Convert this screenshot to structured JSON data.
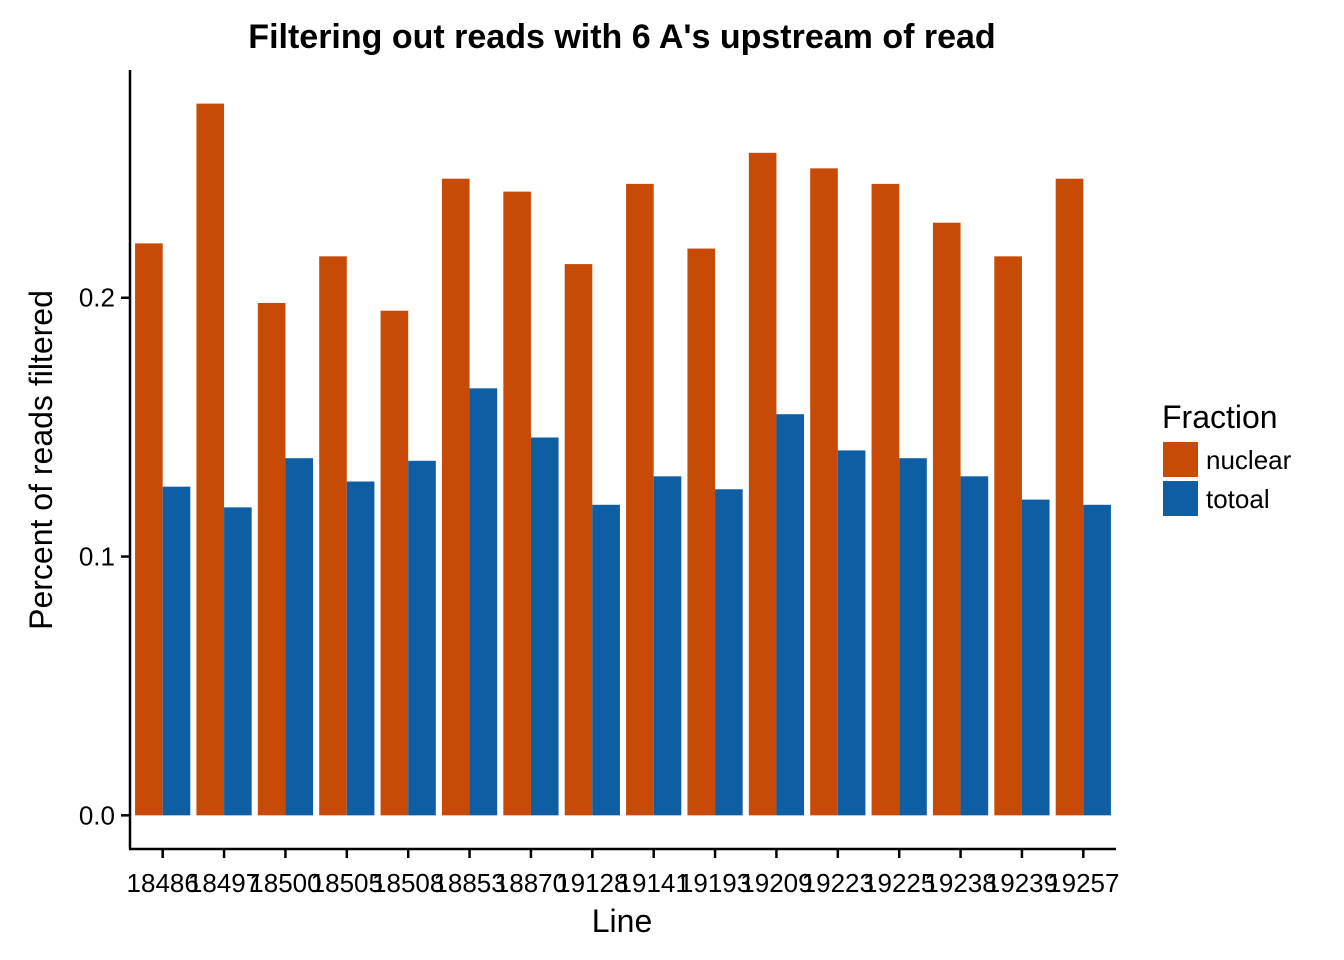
{
  "chart_data": {
    "type": "bar",
    "title": "Filtering out reads with 6 A's upstream of read",
    "xlabel": "Line",
    "ylabel": "Percent of reads filtered",
    "categories": [
      "18486",
      "18497",
      "18500",
      "18505",
      "18508",
      "18853",
      "18870",
      "19128",
      "19141",
      "19193",
      "19209",
      "19223",
      "19225",
      "19238",
      "19239",
      "19257"
    ],
    "series": [
      {
        "name": "nuclear",
        "color": "#C74A06",
        "values": [
          0.221,
          0.275,
          0.198,
          0.216,
          0.195,
          0.246,
          0.241,
          0.213,
          0.244,
          0.219,
          0.256,
          0.25,
          0.244,
          0.229,
          0.216,
          0.246
        ]
      },
      {
        "name": "totoal",
        "color": "#0E5EA4",
        "values": [
          0.127,
          0.119,
          0.138,
          0.129,
          0.137,
          0.165,
          0.146,
          0.12,
          0.131,
          0.126,
          0.155,
          0.141,
          0.138,
          0.131,
          0.122,
          0.12
        ]
      }
    ],
    "yticks": [
      "0.0",
      "0.1",
      "0.2"
    ],
    "ylim": [
      -0.013,
      0.288
    ],
    "legend": {
      "title": "Fraction",
      "position": "right"
    },
    "grid": false
  }
}
